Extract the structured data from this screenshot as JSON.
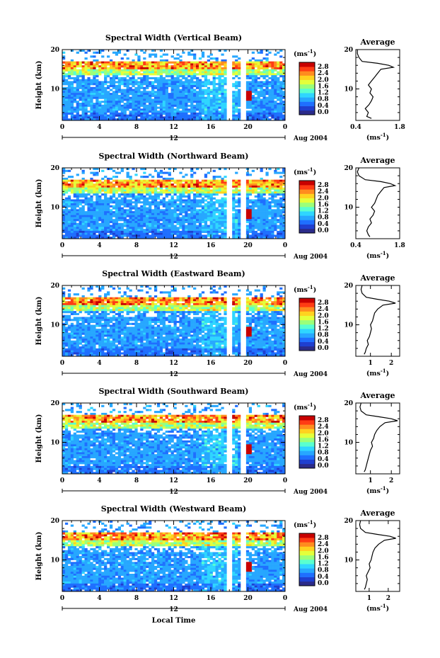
{
  "chart_data": {
    "type": "heatmap",
    "xlabel": "Local Time",
    "date_label": "Aug 2004",
    "date_marker": "12",
    "colorbar": {
      "unit_label": "(ms",
      "unit_exp": "-1",
      "unit_close": ")",
      "ticks": [
        "2.8",
        "2.4",
        "2.0",
        "1.6",
        "1.2",
        "0.8",
        "0.4",
        "0.0"
      ],
      "colors": [
        "#2b2b8a",
        "#1f3fd0",
        "#1f6fff",
        "#27a7ff",
        "#2fd6ff",
        "#59ffd0",
        "#9bff7a",
        "#e4ff3a",
        "#ffd21f",
        "#ff8c1f",
        "#ff3c14",
        "#c80000"
      ]
    },
    "x_ticks": [
      "0",
      "4",
      "8",
      "12",
      "16",
      "20",
      "0"
    ],
    "xlim": [
      0,
      24
    ],
    "ylim": [
      2,
      20
    ],
    "y_ticks": [
      "20",
      "10"
    ],
    "ylabel": "Height (km)",
    "profile_title": "Average",
    "profile_xlabel": "(ms",
    "profile_xlabel_exp": "-1",
    "panels": [
      {
        "title": "Spectral Width (Vertical Beam)",
        "profile_xticks": [
          "0.4",
          "1.8"
        ],
        "profile_xlim": [
          0.4,
          1.8
        ],
        "profile_tick_vals": [
          0.4,
          1.8
        ],
        "profile": {
          "heights": [
            2.5,
            3,
            4,
            5,
            6,
            7,
            8,
            9,
            10,
            11,
            12,
            13,
            14,
            15,
            15.5,
            16,
            16.5,
            17,
            18,
            19,
            20
          ],
          "values": [
            0.9,
            0.75,
            0.8,
            0.7,
            0.82,
            0.9,
            0.95,
            0.85,
            0.9,
            0.8,
            0.9,
            1.0,
            1.1,
            1.2,
            1.6,
            1.45,
            1.1,
            0.6,
            0.5,
            0.45,
            0.45
          ]
        }
      },
      {
        "title": "Spectral Width (Northward Beam)",
        "profile_xticks": [
          "0.4",
          "1.8"
        ],
        "profile_xlim": [
          0.4,
          1.8
        ],
        "profile_tick_vals": [
          0.4,
          1.8
        ],
        "profile": {
          "heights": [
            2.5,
            3,
            4,
            5,
            6,
            7,
            8,
            9,
            10,
            11,
            12,
            13,
            14,
            15,
            15.5,
            16,
            16.5,
            17,
            18,
            19,
            20
          ],
          "values": [
            0.85,
            0.8,
            0.75,
            0.8,
            0.9,
            0.85,
            0.95,
            1.0,
            0.9,
            1.0,
            1.05,
            1.1,
            1.2,
            1.3,
            1.65,
            1.5,
            1.2,
            0.7,
            0.5,
            0.45,
            0.5
          ]
        }
      },
      {
        "title": "Spectral Width (Eastward Beam)",
        "profile_xticks": [
          "1",
          "2"
        ],
        "profile_xlim": [
          0.3,
          2.4
        ],
        "profile_tick_vals": [
          1,
          2
        ],
        "profile": {
          "heights": [
            2.5,
            3,
            4,
            5,
            6,
            7,
            8,
            9,
            10,
            11,
            12,
            13,
            14,
            15,
            15.5,
            16,
            16.5,
            17,
            18,
            19,
            20
          ],
          "values": [
            0.7,
            0.75,
            0.8,
            0.9,
            0.85,
            0.95,
            1.0,
            1.05,
            1.0,
            1.1,
            1.15,
            1.2,
            1.35,
            1.6,
            2.2,
            1.9,
            1.3,
            0.8,
            0.6,
            0.55,
            0.6
          ]
        }
      },
      {
        "title": "Spectral Width (Southward Beam)",
        "profile_xticks": [
          "1",
          "2"
        ],
        "profile_xlim": [
          0.3,
          2.4
        ],
        "profile_tick_vals": [
          1,
          2
        ],
        "profile": {
          "heights": [
            2.5,
            3,
            4,
            5,
            6,
            7,
            8,
            9,
            10,
            11,
            12,
            13,
            14,
            15,
            15.5,
            16,
            16.5,
            17,
            18,
            19,
            20
          ],
          "values": [
            0.7,
            0.75,
            0.8,
            0.85,
            0.9,
            0.95,
            1.0,
            1.1,
            1.05,
            1.15,
            1.2,
            1.3,
            1.45,
            1.7,
            2.3,
            2.0,
            1.4,
            0.8,
            0.55,
            0.5,
            0.55
          ]
        }
      },
      {
        "title": "Spectral Width (Westward Beam)",
        "profile_xticks": [
          "1",
          "2"
        ],
        "profile_xlim": [
          0.3,
          2.6
        ],
        "profile_tick_vals": [
          1,
          2
        ],
        "profile": {
          "heights": [
            2.5,
            3,
            4,
            5,
            6,
            7,
            8,
            9,
            10,
            11,
            12,
            13,
            14,
            15,
            15.5,
            16,
            16.5,
            17,
            18,
            19,
            20
          ],
          "values": [
            0.75,
            0.8,
            0.85,
            0.9,
            0.85,
            0.95,
            1.05,
            1.0,
            1.1,
            1.15,
            1.2,
            1.3,
            1.5,
            1.8,
            2.4,
            2.1,
            1.4,
            0.8,
            0.55,
            0.5,
            0.55
          ]
        }
      }
    ]
  }
}
